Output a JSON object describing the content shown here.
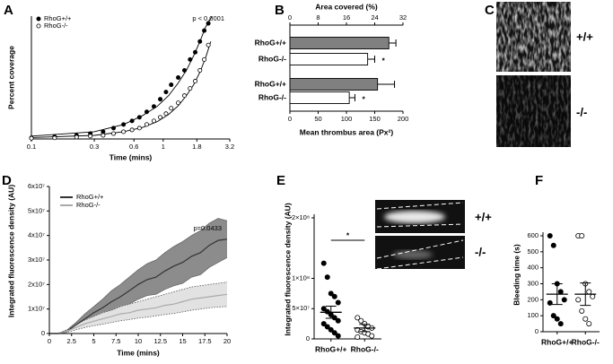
{
  "chart_data": [
    {
      "type": "scatter",
      "panel_label": "A",
      "xlabel": "Time (mins)",
      "ylabel": "Percent coverage",
      "annotation": "p < 0.0001",
      "xscale": "log",
      "xlim": [
        0.1,
        3.2
      ],
      "xticks": [
        0.1,
        0.3,
        0.6,
        1.0,
        1.8,
        3.2
      ],
      "ylim": [
        0,
        34
      ],
      "x": [
        0.1,
        0.15,
        0.22,
        0.28,
        0.35,
        0.42,
        0.5,
        0.58,
        0.66,
        0.75,
        0.85,
        0.95,
        1.05,
        1.15,
        1.3,
        1.45,
        1.6,
        1.75,
        1.9,
        2.05,
        2.2
      ],
      "series": [
        {
          "name": "RhoG+/+",
          "color": "#000000",
          "marker": "filled",
          "values": [
            0.3,
            0.6,
            1,
            1.5,
            2,
            3,
            4,
            5,
            6,
            7.5,
            9,
            11,
            13,
            15,
            17,
            19,
            22,
            24,
            27,
            30,
            32
          ]
        },
        {
          "name": "RhoG-/-",
          "color": "#000000",
          "marker": "open",
          "values": [
            0.2,
            0.3,
            0.5,
            0.8,
            1,
            1.5,
            2,
            2.5,
            3,
            4,
            5,
            6,
            7,
            8.5,
            10,
            12,
            14,
            16,
            19,
            22,
            26
          ]
        }
      ],
      "fits": [
        {
          "color": "#000000",
          "x": [
            0.1,
            0.3,
            0.5,
            0.7,
            0.9,
            1.1,
            1.3,
            1.5,
            1.7,
            1.9,
            2.1,
            2.35
          ],
          "values": [
            0.8,
            2,
            4,
            6.5,
            9,
            12,
            15.5,
            19,
            23,
            27,
            31,
            34
          ]
        },
        {
          "color": "#000000",
          "x": [
            0.1,
            0.3,
            0.5,
            0.7,
            0.9,
            1.1,
            1.3,
            1.5,
            1.7,
            1.9,
            2.1,
            2.3
          ],
          "values": [
            0.4,
            1,
            2,
            3.2,
            4.8,
            6.8,
            9.2,
            12,
            15,
            18.5,
            22.5,
            27
          ]
        }
      ]
    },
    {
      "type": "hbar",
      "panel_label": "B",
      "x2label": "Area covered (%)",
      "xlabel": "Mean thrombus area (Px²)",
      "x2lim": [
        0,
        32
      ],
      "x2ticks": [
        0,
        8,
        16,
        24,
        32
      ],
      "xlim": [
        0,
        200
      ],
      "xticks": [
        0,
        50,
        100,
        150,
        200
      ],
      "categories": [
        "RhoG+/+",
        "RhoG-/-",
        "RhoG+/+",
        "RhoG-/-"
      ],
      "values": [
        28,
        22,
        155,
        105
      ],
      "errors": [
        2,
        2,
        30,
        10
      ],
      "colors": [
        "#808080",
        "#ffffff",
        "#808080",
        "#ffffff"
      ],
      "value_axis": [
        "x2",
        "x2",
        "x",
        "x"
      ],
      "annotations": [
        null,
        "*",
        null,
        "*"
      ]
    },
    {
      "type": "line",
      "panel_label": "D",
      "xlabel": "Time (mins)",
      "ylabel": "Integrated fluorescence density (AU)",
      "annotation": "p=0.0433",
      "xlim": [
        0,
        20
      ],
      "xticks": [
        0.0,
        2.5,
        5.0,
        7.5,
        10.0,
        12.5,
        15.0,
        17.5,
        20.0
      ],
      "ylim": [
        0,
        60000000.0
      ],
      "yticks": [
        0,
        {
          "value": 10000000.0,
          "label": "1x10⁷"
        },
        {
          "value": 20000000.0,
          "label": "2x10⁷"
        },
        {
          "value": 30000000.0,
          "label": "3x10⁷"
        },
        {
          "value": 40000000.0,
          "label": "4x10⁷"
        },
        {
          "value": 50000000.0,
          "label": "5x10⁷"
        },
        {
          "value": 60000000.0,
          "label": "6x10⁷"
        }
      ],
      "x": [
        0,
        1,
        2,
        3,
        4,
        5,
        6,
        7,
        8,
        9,
        10,
        11,
        12,
        13,
        14,
        15,
        16,
        17,
        18,
        19,
        20
      ],
      "series": [
        {
          "name": "RhoG+/+",
          "color": "#333333",
          "band_color": "#8c8c8c",
          "band_style": "solid",
          "values": [
            0,
            0,
            1000000.0,
            3500000.0,
            6000000.0,
            8500000.0,
            10500000.0,
            13000000.0,
            15000000.0,
            17500000.0,
            20000000.0,
            22000000.0,
            23000000.0,
            25500000.0,
            27500000.0,
            29000000.0,
            31500000.0,
            33000000.0,
            36000000.0,
            38000000.0,
            38500000.0
          ],
          "upper": [
            0,
            0,
            1500000.0,
            4500000.0,
            8000000.0,
            11000000.0,
            14000000.0,
            17500000.0,
            20000000.0,
            23000000.0,
            26000000.0,
            28500000.0,
            30000000.0,
            33000000.0,
            35500000.0,
            37500000.0,
            40000000.0,
            42000000.0,
            45000000.0,
            47000000.0,
            46000000.0
          ],
          "lower": [
            0,
            0,
            500000.0,
            2500000.0,
            4000000.0,
            6000000.0,
            7000000.0,
            8500000.0,
            10000000.0,
            12000000.0,
            14000000.0,
            15500000.0,
            16000000.0,
            18000000.0,
            19500000.0,
            20500000.0,
            23000000.0,
            24000000.0,
            27000000.0,
            29000000.0,
            31000000.0
          ]
        },
        {
          "name": "RhoG-/-",
          "color": "#aaaaaa",
          "band_color": "#e2e2e2",
          "band_style": "dotted",
          "values": [
            0,
            0,
            1000000.0,
            2500000.0,
            4000000.0,
            5000000.0,
            6000000.0,
            7000000.0,
            8000000.0,
            8500000.0,
            9500000.0,
            10000000.0,
            10500000.0,
            11500000.0,
            12000000.0,
            13000000.0,
            14000000.0,
            14500000.0,
            15000000.0,
            15500000.0,
            16000000.0
          ],
          "upper": [
            0,
            0,
            1500000.0,
            3500000.0,
            5500000.0,
            7000000.0,
            8500000.0,
            9500000.0,
            11000000.0,
            12000000.0,
            13000000.0,
            14000000.0,
            15000000.0,
            16000000.0,
            17000000.0,
            18000000.0,
            19000000.0,
            19500000.0,
            20000000.0,
            20500000.0,
            21000000.0
          ],
          "lower": [
            0,
            0,
            500000.0,
            1500000.0,
            2500000.0,
            3200000.0,
            3800000.0,
            4500000.0,
            5200000.0,
            5700000.0,
            6300000.0,
            6700000.0,
            7200000.0,
            7800000.0,
            8200000.0,
            8800000.0,
            9500000.0,
            10000000.0,
            10500000.0,
            10800000.0,
            11000000.0
          ]
        }
      ]
    },
    {
      "type": "dot",
      "panel_label": "E",
      "ylabel": "Integrated fluorescence density (AU)",
      "significance": "*",
      "image_labels": [
        "+/+",
        "-/-"
      ],
      "ylim": [
        0,
        200000000.0
      ],
      "yticks": [
        0,
        {
          "value": 50000000.0,
          "label": "5×10⁷"
        },
        {
          "value": 100000000.0,
          "label": "1×10⁸"
        },
        {
          "value": 200000000.0,
          "label": "2×10⁸"
        }
      ],
      "categories": [
        "RhoG+/+",
        "RhoG-/-"
      ],
      "groups": [
        {
          "marker": "filled",
          "color": "#000000",
          "mean": 44000000.0,
          "error": 10000000.0,
          "values": [
            125000000.0,
            102000000.0,
            75000000.0,
            70000000.0,
            60000000.0,
            50000000.0,
            45000000.0,
            40000000.0,
            35000000.0,
            30000000.0,
            25000000.0,
            20000000.0,
            15000000.0,
            10000000.0,
            5000000.0
          ]
        },
        {
          "marker": "open",
          "color": "#000000",
          "mean": 18000000.0,
          "error": 6000000.0,
          "values": [
            35000000.0,
            30000000.0,
            25000000.0,
            20000000.0,
            18000000.0,
            15000000.0,
            12000000.0,
            10000000.0,
            8000000.0,
            5000000.0,
            3000000.0
          ]
        }
      ]
    },
    {
      "type": "dot",
      "panel_label": "F",
      "ylabel": "Bleeding time (s)",
      "ylim": [
        0,
        600
      ],
      "yticks": [
        0,
        100,
        200,
        300,
        400,
        500,
        600
      ],
      "categories": [
        "RhoG+/+",
        "RhoG-/-"
      ],
      "groups": [
        {
          "marker": "filled",
          "color": "#000000",
          "mean": 235,
          "error": 65,
          "values": [
            600,
            540,
            300,
            250,
            200,
            180,
            100,
            80,
            50
          ]
        },
        {
          "marker": "open",
          "color": "#000000",
          "mean": 235,
          "error": 70,
          "values": [
            600,
            600,
            300,
            250,
            220,
            200,
            130,
            80,
            50
          ]
        }
      ]
    }
  ],
  "image_panel_c": {
    "panel_label": "C",
    "labels": [
      "+/+",
      "-/-"
    ]
  }
}
